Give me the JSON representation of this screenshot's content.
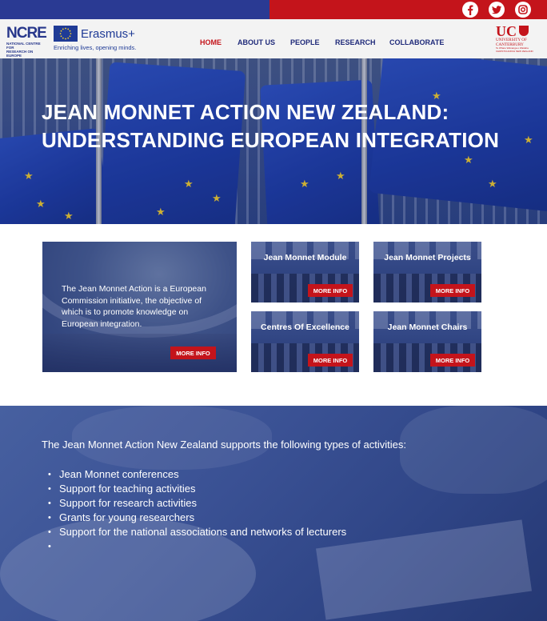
{
  "colors": {
    "brand_blue": "#2a3a93",
    "brand_red": "#c4141b",
    "nav_text": "#1f2a7a"
  },
  "social": [
    {
      "name": "facebook-icon"
    },
    {
      "name": "twitter-icon"
    },
    {
      "name": "instagram-icon"
    }
  ],
  "logos": {
    "ncre_big": "NCRE",
    "ncre_small_1": "NATIONAL CENTRE FOR",
    "ncre_small_2": "RESEARCH ON EUROPE",
    "erasmus_word": "Erasmus+",
    "erasmus_tagline": "Enriching lives, opening minds.",
    "uc_big": "UC",
    "uc_line_1": "UNIVERSITY OF",
    "uc_line_2": "CANTERBURY",
    "uc_tiny": "Te Whare Wānanga o Waitaha",
    "uc_tiny_2": "CHRISTCHURCH NEW ZEALAND"
  },
  "nav": {
    "home": "HOME",
    "about": "ABOUT US",
    "people": "PEOPLE",
    "research": "RESEARCH",
    "collaborate": "COLLABORATE"
  },
  "hero": {
    "title_line_1": "JEAN MONNET ACTION NEW ZEALAND:",
    "title_line_2": "UNDERSTANDING EUROPEAN INTEGRATION"
  },
  "intro_card": {
    "text": "The Jean Monnet Action is a European Commission initiative, the objective of which is to promote knowledge on European integration.",
    "button": "MORE INFO"
  },
  "cards": [
    {
      "title": "Jean Monnet Module",
      "button": "MORE INFO"
    },
    {
      "title": "Jean Monnet Projects",
      "button": "MORE INFO"
    },
    {
      "title": "Centres Of Excellence",
      "button": "MORE INFO"
    },
    {
      "title": "Jean Monnet Chairs",
      "button": "MORE INFO"
    }
  ],
  "activities": {
    "intro": "The Jean Monnet Action New Zealand supports the following types of activities:",
    "items": [
      "Jean Monnet conferences",
      "Support for teaching activities",
      "Support for research activities",
      "Grants for young researchers",
      "Support for the national associations and networks of lecturers",
      ""
    ]
  }
}
